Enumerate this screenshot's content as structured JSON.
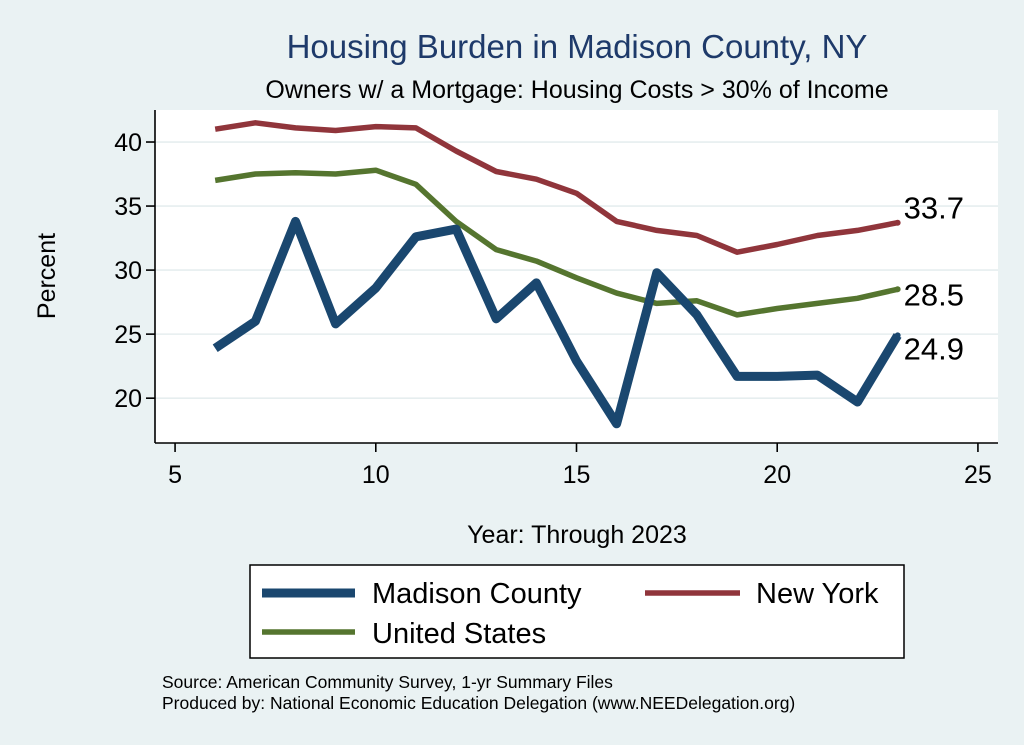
{
  "chart_data": {
    "type": "line",
    "title": "Housing Burden in Madison County, NY",
    "subtitle": "Owners w/ a Mortgage: Housing Costs > 30% of Income",
    "xlabel": "Year: Through 2023",
    "ylabel": "Percent",
    "xlim": [
      4.5,
      25.5
    ],
    "ylim": [
      16.5,
      42.5
    ],
    "xticks": [
      5,
      10,
      15,
      20,
      25
    ],
    "yticks": [
      20,
      25,
      30,
      35,
      40
    ],
    "grid": true,
    "legend_position": "bottom",
    "series": [
      {
        "name": "Madison County",
        "color": "#1a476f",
        "width": "thick",
        "points": [
          [
            6,
            23.9
          ],
          [
            7,
            26.0
          ],
          [
            8,
            33.8
          ],
          [
            9,
            25.8
          ],
          [
            10,
            28.6
          ],
          [
            11,
            32.6
          ],
          [
            12,
            33.2
          ],
          [
            13,
            26.2
          ],
          [
            14,
            29.0
          ],
          [
            15,
            22.9
          ],
          [
            16,
            18.0
          ],
          [
            17,
            29.8
          ],
          [
            18,
            26.5
          ],
          [
            19,
            21.7
          ],
          [
            20,
            21.7
          ],
          [
            21,
            21.8
          ],
          [
            22,
            19.7
          ],
          [
            23,
            24.9
          ]
        ],
        "end_label": "24.9"
      },
      {
        "name": "New York",
        "color": "#90353b",
        "width": "medium",
        "points": [
          [
            6,
            41.0
          ],
          [
            7,
            41.5
          ],
          [
            8,
            41.1
          ],
          [
            9,
            40.9
          ],
          [
            10,
            41.2
          ],
          [
            11,
            41.1
          ],
          [
            12,
            39.3
          ],
          [
            13,
            37.7
          ],
          [
            14,
            37.1
          ],
          [
            15,
            36.0
          ],
          [
            16,
            33.8
          ],
          [
            17,
            33.1
          ],
          [
            18,
            32.7
          ],
          [
            19,
            31.4
          ],
          [
            20,
            32.0
          ],
          [
            21,
            32.7
          ],
          [
            22,
            33.1
          ],
          [
            23,
            33.7
          ]
        ],
        "end_label": "33.7"
      },
      {
        "name": "United States",
        "color": "#55752f",
        "width": "medium",
        "points": [
          [
            6,
            37.0
          ],
          [
            7,
            37.5
          ],
          [
            8,
            37.6
          ],
          [
            9,
            37.5
          ],
          [
            10,
            37.8
          ],
          [
            11,
            36.7
          ],
          [
            12,
            33.8
          ],
          [
            13,
            31.6
          ],
          [
            14,
            30.7
          ],
          [
            15,
            29.4
          ],
          [
            16,
            28.2
          ],
          [
            17,
            27.4
          ],
          [
            18,
            27.6
          ],
          [
            19,
            26.5
          ],
          [
            20,
            27.0
          ],
          [
            21,
            27.4
          ],
          [
            22,
            27.8
          ],
          [
            23,
            28.5
          ]
        ],
        "end_label": "28.5"
      }
    ],
    "notes": [
      "Source: American Community Survey, 1-yr Summary Files",
      "Produced by: National Economic Education Delegation (www.NEEDelegation.org)"
    ],
    "colors": {
      "background": "#eaf2f3",
      "plot_background": "#ffffff",
      "title": "#1e3a6a",
      "grid": "#e6eeef"
    }
  }
}
